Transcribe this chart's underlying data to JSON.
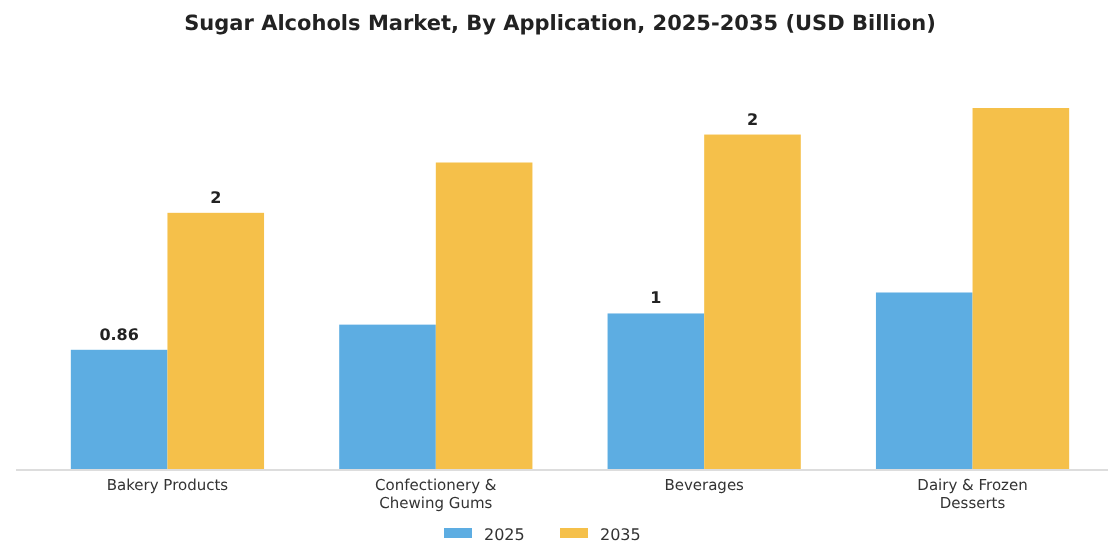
{
  "chart_data": {
    "type": "bar",
    "title": "Sugar Alcohols Market, By Application, 2025-2035 (USD Billion)",
    "categories": [
      "Bakery Products",
      "Confectionery & Chewing Gums",
      "Beverages",
      "Dairy & Frozen Desserts"
    ],
    "series": [
      {
        "name": "2025",
        "color": "#5dade2",
        "values": [
          0.86,
          1.04,
          1.12,
          1.27
        ],
        "value_labels": [
          "0.86",
          null,
          "1",
          null
        ]
      },
      {
        "name": "2035",
        "color": "#f5c04a",
        "values": [
          1.84,
          2.2,
          2.4,
          2.59
        ],
        "value_labels": [
          "2",
          null,
          "2",
          null
        ]
      }
    ],
    "legend": "bottom"
  }
}
